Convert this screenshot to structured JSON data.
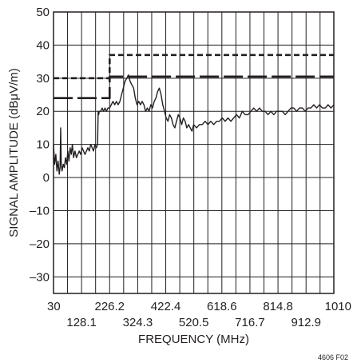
{
  "chart_data": {
    "type": "line",
    "xlabel": "FREQUENCY (MHz)",
    "ylabel": "SIGNAL AMPLITUDE (dBμV/m)",
    "xlim": [
      30,
      1010
    ],
    "ylim": [
      -35,
      50
    ],
    "grid": true,
    "x_tick_labels_row1": [
      "30",
      "226.2",
      "422.4",
      "618.6",
      "814.8",
      "1010"
    ],
    "x_tick_labels_row2": [
      "128.1",
      "324.3",
      "520.5",
      "716.7",
      "912.9"
    ],
    "y_ticks": [
      "50",
      "40",
      "30",
      "20",
      "10",
      "0",
      "–10",
      "–20",
      "–30"
    ],
    "y_tick_values": [
      50,
      40,
      30,
      20,
      10,
      0,
      -10,
      -20,
      -30
    ],
    "x_grid_values": [
      30,
      79,
      128.1,
      177.1,
      226.2,
      275.2,
      324.3,
      373.3,
      422.4,
      471.4,
      520.5,
      569.5,
      618.6,
      667.6,
      716.7,
      765.7,
      814.8,
      863.8,
      912.9,
      961.9,
      1010
    ],
    "figure_id": "4606 F02",
    "series": [
      {
        "style": "solid",
        "x": [
          30,
          34,
          38,
          42,
          46,
          50,
          53,
          55,
          57,
          60,
          64,
          68,
          72,
          76,
          80,
          84,
          88,
          92,
          96,
          100,
          105,
          110,
          115,
          120,
          125,
          130,
          135,
          140,
          145,
          150,
          155,
          160,
          165,
          170,
          175,
          180,
          184,
          186,
          188,
          190,
          195,
          200,
          205,
          210,
          215,
          220,
          226,
          232,
          238,
          244,
          250,
          256,
          262,
          268,
          274,
          280,
          286,
          292,
          298,
          304,
          310,
          316,
          322,
          328,
          334,
          340,
          346,
          352,
          358,
          364,
          370,
          376,
          382,
          388,
          394,
          400,
          406,
          412,
          418,
          424,
          430,
          436,
          442,
          448,
          454,
          460,
          466,
          472,
          478,
          484,
          490,
          496,
          502,
          508,
          514,
          520,
          530,
          540,
          550,
          560,
          570,
          580,
          590,
          600,
          610,
          620,
          630,
          640,
          650,
          660,
          670,
          680,
          690,
          700,
          710,
          720,
          730,
          740,
          750,
          760,
          770,
          780,
          790,
          800,
          810,
          820,
          830,
          840,
          850,
          860,
          870,
          880,
          890,
          900,
          910,
          920,
          930,
          940,
          950,
          960,
          970,
          980,
          990,
          1000,
          1010
        ],
        "values": [
          10,
          4,
          7,
          2,
          5,
          1,
          3,
          15,
          4,
          2,
          4,
          3,
          6,
          4,
          8,
          5,
          9,
          7,
          10,
          6,
          8,
          6,
          7,
          8,
          7,
          9,
          8,
          7,
          8,
          9,
          8,
          10,
          9,
          8,
          10,
          9,
          10,
          20,
          19,
          20,
          20,
          21,
          20,
          21,
          20,
          21,
          21,
          22,
          23,
          22,
          23,
          22,
          23,
          25,
          27,
          29,
          30,
          31,
          29,
          28,
          27,
          24,
          22,
          23,
          22,
          23,
          22,
          20,
          21,
          20,
          22,
          21,
          23,
          24,
          26,
          27,
          25,
          22,
          20,
          18,
          17,
          19,
          18,
          16,
          15,
          17,
          19,
          18,
          16,
          18,
          17,
          15,
          16,
          15,
          14,
          16,
          15,
          16,
          16,
          17,
          16,
          17,
          16,
          17,
          17,
          18,
          17,
          18,
          17,
          18,
          19,
          18,
          20,
          19,
          19,
          20,
          21,
          20,
          21,
          20,
          20,
          19,
          20,
          19,
          20,
          20,
          20,
          19,
          20,
          21,
          21,
          20,
          21,
          21,
          20,
          21,
          21,
          22,
          21,
          22,
          21,
          21,
          22,
          21,
          22
        ]
      },
      {
        "style": "short-dash",
        "x": [
          30,
          226.2,
          226.2,
          1010
        ],
        "values": [
          30,
          30,
          37,
          37
        ]
      },
      {
        "style": "long-dash",
        "x": [
          30,
          226.2,
          226.2,
          1010
        ],
        "values": [
          24,
          24,
          30.5,
          30.5
        ]
      }
    ]
  }
}
